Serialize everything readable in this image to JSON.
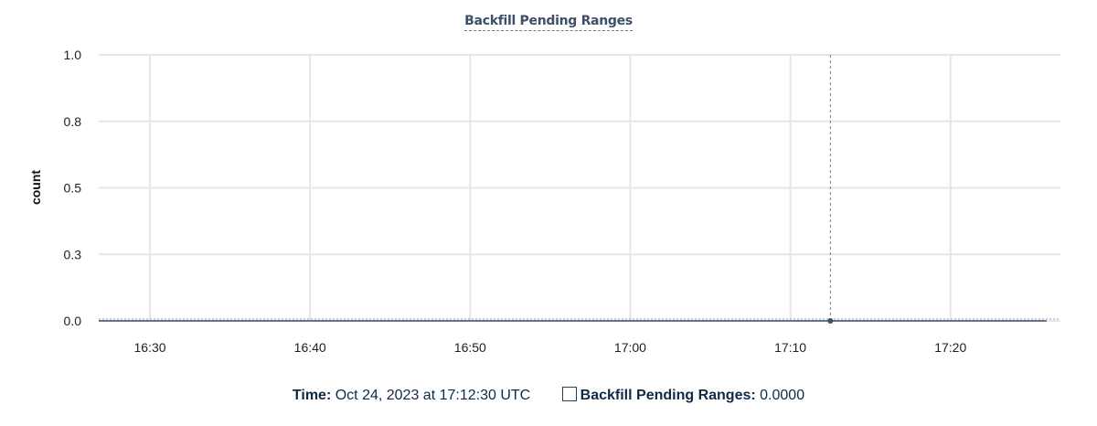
{
  "chart_data": {
    "type": "line",
    "title": "Backfill Pending Ranges",
    "xlabel": "",
    "ylabel": "count",
    "ylim": [
      0,
      1
    ],
    "yticks": [
      0,
      0.25,
      0.5,
      0.75,
      1
    ],
    "ytick_labels": [
      "0.0",
      "0.3",
      "0.5",
      "0.8",
      "1.0"
    ],
    "xlim": [
      "16:26:48",
      "17:26:52"
    ],
    "xtick_labels": [
      "16:30",
      "16:40",
      "16:50",
      "17:00",
      "17:10",
      "17:20"
    ],
    "grid": true,
    "series": [
      {
        "name": "Backfill Pending Ranges",
        "color": "#3d4f6a",
        "x": [
          "16:26:48",
          "17:12:30",
          "17:26:00"
        ],
        "values": [
          0,
          0,
          0
        ]
      }
    ],
    "hover": {
      "x": "17:12:30",
      "value": 0
    }
  },
  "legend": {
    "time_label": "Time:",
    "time_value": "Oct 24, 2023 at 17:12:30 UTC",
    "series_label": "Backfill Pending Ranges:",
    "series_value": "0.0000"
  }
}
